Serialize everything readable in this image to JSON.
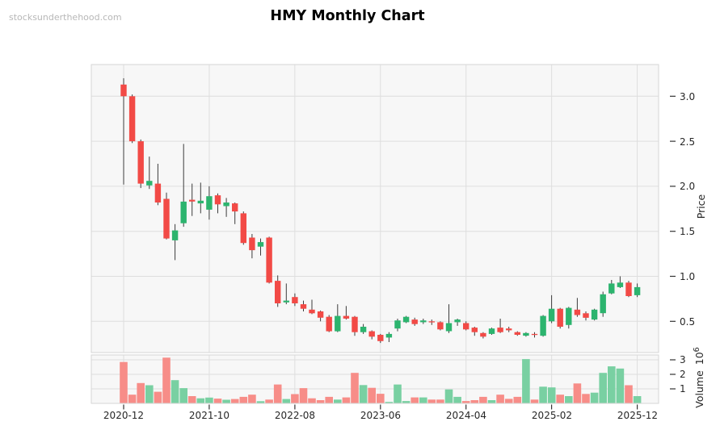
{
  "watermark": "stocksunderthehood.com",
  "colors": {
    "up": "#2cb46e",
    "down": "#f24a46",
    "volume_up": "#79d0a2",
    "volume_down": "#f78d88",
    "wick": "#3c3c3c",
    "pane_bg": "#f7f7f7",
    "grid": "#dedede",
    "spine": "#d6d6d6",
    "tick": "#333333"
  },
  "chart_data": {
    "type": "candlestick",
    "title": "HMY Monthly Chart",
    "price_axis": {
      "label": "Price",
      "ticks": [
        "3.0",
        "2.5",
        "2.0",
        "1.5",
        "1.0",
        "0.5"
      ],
      "tick_values": [
        3.0,
        2.5,
        2.0,
        1.5,
        1.0,
        0.5
      ],
      "range": [
        0.19,
        3.32
      ]
    },
    "volume_axis": {
      "label": "Volume",
      "scale": "10",
      "scale_exp": "6",
      "ticks": [
        "3",
        "2",
        "1"
      ],
      "tick_values": [
        3,
        2,
        1
      ],
      "range": [
        0,
        3.4
      ]
    },
    "x_axis": {
      "labels": [
        "2020-12",
        "2021-10",
        "2022-08",
        "2023-06",
        "2024-04",
        "2025-02",
        "2025-12"
      ],
      "tick_indices": [
        0,
        10,
        20,
        30,
        40,
        50,
        60
      ]
    },
    "months": [
      {
        "m": "2020-12",
        "o": 3.13,
        "h": 3.2,
        "l": 2.02,
        "c": 3.0,
        "v": 2.85
      },
      {
        "m": "2021-01",
        "o": 3.0,
        "h": 3.02,
        "l": 2.48,
        "c": 2.5,
        "v": 0.6
      },
      {
        "m": "2021-02",
        "o": 2.5,
        "h": 2.52,
        "l": 1.98,
        "c": 2.03,
        "v": 1.4
      },
      {
        "m": "2021-03",
        "o": 2.01,
        "h": 2.33,
        "l": 1.97,
        "c": 2.06,
        "v": 1.25
      },
      {
        "m": "2021-04",
        "o": 2.03,
        "h": 2.25,
        "l": 1.79,
        "c": 1.82,
        "v": 0.8
      },
      {
        "m": "2021-05",
        "o": 1.86,
        "h": 1.93,
        "l": 1.41,
        "c": 1.42,
        "v": 3.15
      },
      {
        "m": "2021-06",
        "o": 1.4,
        "h": 1.58,
        "l": 1.18,
        "c": 1.51,
        "v": 1.6
      },
      {
        "m": "2021-07",
        "o": 1.59,
        "h": 2.47,
        "l": 1.55,
        "c": 1.83,
        "v": 1.05
      },
      {
        "m": "2021-08",
        "o": 1.85,
        "h": 2.03,
        "l": 1.67,
        "c": 1.83,
        "v": 0.5
      },
      {
        "m": "2021-09",
        "o": 1.81,
        "h": 2.04,
        "l": 1.7,
        "c": 1.84,
        "v": 0.35
      },
      {
        "m": "2021-10",
        "o": 1.74,
        "h": 2.0,
        "l": 1.63,
        "c": 1.89,
        "v": 0.4
      },
      {
        "m": "2021-11",
        "o": 1.9,
        "h": 1.92,
        "l": 1.7,
        "c": 1.8,
        "v": 0.33
      },
      {
        "m": "2021-12",
        "o": 1.78,
        "h": 1.87,
        "l": 1.66,
        "c": 1.82,
        "v": 0.25
      },
      {
        "m": "2022-01",
        "o": 1.81,
        "h": 1.82,
        "l": 1.58,
        "c": 1.72,
        "v": 0.3
      },
      {
        "m": "2022-02",
        "o": 1.7,
        "h": 1.72,
        "l": 1.35,
        "c": 1.37,
        "v": 0.45
      },
      {
        "m": "2022-03",
        "o": 1.43,
        "h": 1.47,
        "l": 1.2,
        "c": 1.29,
        "v": 0.6
      },
      {
        "m": "2022-04",
        "o": 1.33,
        "h": 1.42,
        "l": 1.23,
        "c": 1.38,
        "v": 0.15
      },
      {
        "m": "2022-05",
        "o": 1.43,
        "h": 1.44,
        "l": 0.92,
        "c": 0.93,
        "v": 0.26
      },
      {
        "m": "2022-06",
        "o": 0.95,
        "h": 1.01,
        "l": 0.66,
        "c": 0.7,
        "v": 1.3
      },
      {
        "m": "2022-07",
        "o": 0.71,
        "h": 0.92,
        "l": 0.69,
        "c": 0.73,
        "v": 0.3
      },
      {
        "m": "2022-08",
        "o": 0.77,
        "h": 0.81,
        "l": 0.67,
        "c": 0.7,
        "v": 0.64
      },
      {
        "m": "2022-09",
        "o": 0.69,
        "h": 0.73,
        "l": 0.61,
        "c": 0.64,
        "v": 1.05
      },
      {
        "m": "2022-10",
        "o": 0.63,
        "h": 0.74,
        "l": 0.58,
        "c": 0.59,
        "v": 0.35
      },
      {
        "m": "2022-11",
        "o": 0.61,
        "h": 0.62,
        "l": 0.5,
        "c": 0.54,
        "v": 0.22
      },
      {
        "m": "2022-12",
        "o": 0.55,
        "h": 0.57,
        "l": 0.38,
        "c": 0.39,
        "v": 0.45
      },
      {
        "m": "2023-01",
        "o": 0.39,
        "h": 0.69,
        "l": 0.38,
        "c": 0.56,
        "v": 0.26
      },
      {
        "m": "2023-02",
        "o": 0.56,
        "h": 0.67,
        "l": 0.52,
        "c": 0.53,
        "v": 0.41
      },
      {
        "m": "2023-03",
        "o": 0.55,
        "h": 0.56,
        "l": 0.34,
        "c": 0.38,
        "v": 2.1
      },
      {
        "m": "2023-04",
        "o": 0.38,
        "h": 0.47,
        "l": 0.36,
        "c": 0.44,
        "v": 1.26
      },
      {
        "m": "2023-05",
        "o": 0.39,
        "h": 0.4,
        "l": 0.3,
        "c": 0.33,
        "v": 1.07
      },
      {
        "m": "2023-06",
        "o": 0.35,
        "h": 0.36,
        "l": 0.26,
        "c": 0.28,
        "v": 0.66
      },
      {
        "m": "2023-07",
        "o": 0.32,
        "h": 0.38,
        "l": 0.27,
        "c": 0.36,
        "v": 0.1
      },
      {
        "m": "2023-08",
        "o": 0.42,
        "h": 0.53,
        "l": 0.39,
        "c": 0.51,
        "v": 1.3
      },
      {
        "m": "2023-09",
        "o": 0.49,
        "h": 0.56,
        "l": 0.48,
        "c": 0.55,
        "v": 0.16
      },
      {
        "m": "2023-10",
        "o": 0.52,
        "h": 0.54,
        "l": 0.45,
        "c": 0.47,
        "v": 0.41
      },
      {
        "m": "2023-11",
        "o": 0.49,
        "h": 0.53,
        "l": 0.47,
        "c": 0.51,
        "v": 0.41
      },
      {
        "m": "2023-12",
        "o": 0.5,
        "h": 0.52,
        "l": 0.46,
        "c": 0.49,
        "v": 0.26
      },
      {
        "m": "2024-01",
        "o": 0.49,
        "h": 0.5,
        "l": 0.4,
        "c": 0.41,
        "v": 0.26
      },
      {
        "m": "2024-02",
        "o": 0.39,
        "h": 0.69,
        "l": 0.37,
        "c": 0.48,
        "v": 0.96
      },
      {
        "m": "2024-03",
        "o": 0.49,
        "h": 0.53,
        "l": 0.45,
        "c": 0.52,
        "v": 0.45
      },
      {
        "m": "2024-04",
        "o": 0.48,
        "h": 0.5,
        "l": 0.4,
        "c": 0.41,
        "v": 0.16
      },
      {
        "m": "2024-05",
        "o": 0.43,
        "h": 0.44,
        "l": 0.34,
        "c": 0.38,
        "v": 0.22
      },
      {
        "m": "2024-06",
        "o": 0.37,
        "h": 0.38,
        "l": 0.31,
        "c": 0.33,
        "v": 0.45
      },
      {
        "m": "2024-07",
        "o": 0.36,
        "h": 0.43,
        "l": 0.35,
        "c": 0.42,
        "v": 0.22
      },
      {
        "m": "2024-08",
        "o": 0.43,
        "h": 0.53,
        "l": 0.37,
        "c": 0.38,
        "v": 0.6
      },
      {
        "m": "2024-09",
        "o": 0.42,
        "h": 0.44,
        "l": 0.38,
        "c": 0.4,
        "v": 0.31
      },
      {
        "m": "2024-10",
        "o": 0.38,
        "h": 0.39,
        "l": 0.34,
        "c": 0.35,
        "v": 0.45
      },
      {
        "m": "2024-11",
        "o": 0.34,
        "h": 0.38,
        "l": 0.33,
        "c": 0.37,
        "v": 3.05
      },
      {
        "m": "2024-12",
        "o": 0.36,
        "h": 0.38,
        "l": 0.32,
        "c": 0.35,
        "v": 0.26
      },
      {
        "m": "2025-01",
        "o": 0.34,
        "h": 0.57,
        "l": 0.33,
        "c": 0.56,
        "v": 1.15
      },
      {
        "m": "2025-02",
        "o": 0.5,
        "h": 0.79,
        "l": 0.48,
        "c": 0.64,
        "v": 1.1
      },
      {
        "m": "2025-03",
        "o": 0.64,
        "h": 0.65,
        "l": 0.42,
        "c": 0.44,
        "v": 0.6
      },
      {
        "m": "2025-04",
        "o": 0.46,
        "h": 0.66,
        "l": 0.42,
        "c": 0.65,
        "v": 0.5
      },
      {
        "m": "2025-05",
        "o": 0.63,
        "h": 0.76,
        "l": 0.55,
        "c": 0.57,
        "v": 1.37
      },
      {
        "m": "2025-06",
        "o": 0.59,
        "h": 0.61,
        "l": 0.51,
        "c": 0.54,
        "v": 0.65
      },
      {
        "m": "2025-07",
        "o": 0.52,
        "h": 0.64,
        "l": 0.51,
        "c": 0.63,
        "v": 0.74
      },
      {
        "m": "2025-08",
        "o": 0.59,
        "h": 0.83,
        "l": 0.55,
        "c": 0.8,
        "v": 2.1
      },
      {
        "m": "2025-09",
        "o": 0.81,
        "h": 0.96,
        "l": 0.8,
        "c": 0.92,
        "v": 2.55
      },
      {
        "m": "2025-10",
        "o": 0.88,
        "h": 1.0,
        "l": 0.87,
        "c": 0.93,
        "v": 2.4
      },
      {
        "m": "2025-11",
        "o": 0.93,
        "h": 0.95,
        "l": 0.77,
        "c": 0.78,
        "v": 1.25
      },
      {
        "m": "2025-12",
        "o": 0.79,
        "h": 0.92,
        "l": 0.77,
        "c": 0.88,
        "v": 0.5
      }
    ]
  }
}
